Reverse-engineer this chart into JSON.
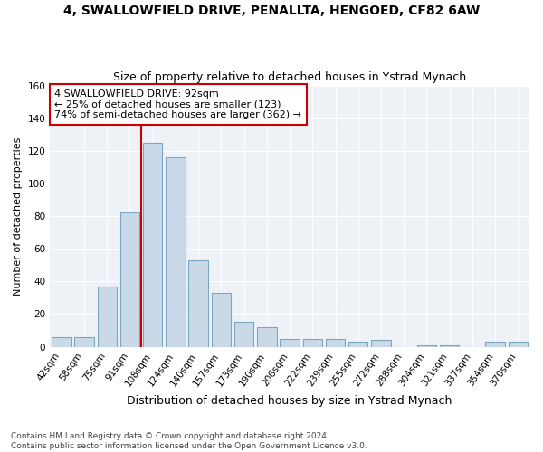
{
  "title": "4, SWALLOWFIELD DRIVE, PENALLTA, HENGOED, CF82 6AW",
  "subtitle": "Size of property relative to detached houses in Ystrad Mynach",
  "xlabel": "Distribution of detached houses by size in Ystrad Mynach",
  "ylabel": "Number of detached properties",
  "categories": [
    "42sqm",
    "58sqm",
    "75sqm",
    "91sqm",
    "108sqm",
    "124sqm",
    "140sqm",
    "157sqm",
    "173sqm",
    "190sqm",
    "206sqm",
    "222sqm",
    "239sqm",
    "255sqm",
    "272sqm",
    "288sqm",
    "304sqm",
    "321sqm",
    "337sqm",
    "354sqm",
    "370sqm"
  ],
  "values": [
    6,
    6,
    37,
    82,
    125,
    116,
    53,
    33,
    15,
    12,
    5,
    5,
    5,
    3,
    4,
    0,
    1,
    1,
    0,
    3,
    3
  ],
  "bar_color": "#c9d9e8",
  "bar_edge_color": "#7ba7c4",
  "vline_x": 3.5,
  "vline_color": "#cc0000",
  "annotation_line1": "4 SWALLOWFIELD DRIVE: 92sqm",
  "annotation_line2": "← 25% of detached houses are smaller (123)",
  "annotation_line3": "74% of semi-detached houses are larger (362) →",
  "annotation_box_color": "white",
  "annotation_box_edge_color": "#cc0000",
  "ylim": [
    0,
    160
  ],
  "yticks": [
    0,
    20,
    40,
    60,
    80,
    100,
    120,
    140,
    160
  ],
  "background_color": "#eef2f7",
  "footnote": "Contains HM Land Registry data © Crown copyright and database right 2024.\nContains public sector information licensed under the Open Government Licence v3.0.",
  "title_fontsize": 10,
  "subtitle_fontsize": 9,
  "xlabel_fontsize": 9,
  "ylabel_fontsize": 8,
  "tick_fontsize": 7.5,
  "annotation_fontsize": 8,
  "footnote_fontsize": 6.5
}
